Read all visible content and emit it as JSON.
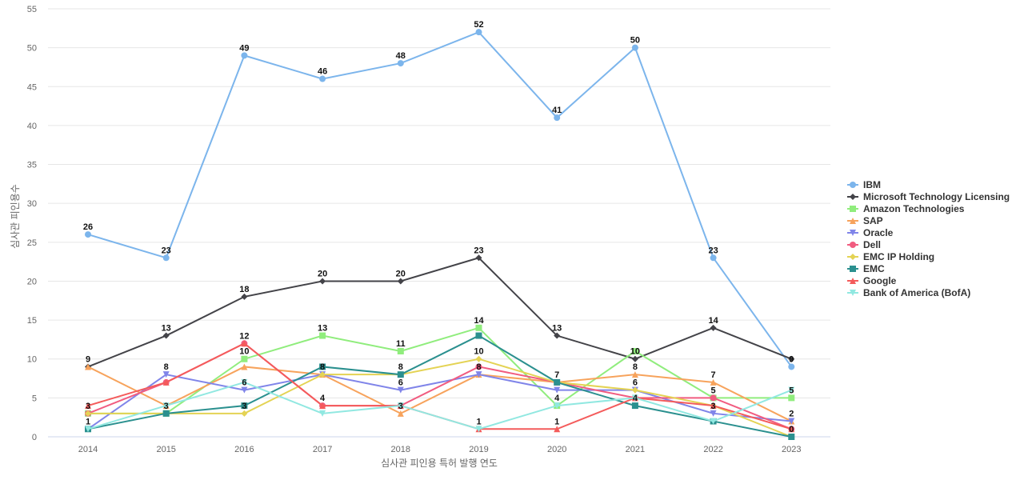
{
  "chart_data": {
    "type": "line",
    "title": "",
    "xlabel": "심사관 피인용 특허 발행 연도",
    "ylabel": "심사관 피인용수",
    "x": [
      "2014",
      "2015",
      "2016",
      "2017",
      "2018",
      "2019",
      "2020",
      "2021",
      "2022",
      "2023"
    ],
    "ylim": [
      0,
      55
    ],
    "yticks": [
      0,
      5,
      10,
      15,
      20,
      25,
      30,
      35,
      40,
      45,
      50,
      55
    ],
    "grid": true,
    "legend_position": "right",
    "series": [
      {
        "name": "IBM",
        "color": "#7cb5ec",
        "marker": "circle",
        "values": [
          26,
          23,
          49,
          46,
          48,
          52,
          41,
          50,
          23,
          9
        ],
        "labels": true
      },
      {
        "name": "Microsoft Technology Licensing",
        "color": "#434348",
        "marker": "diamond",
        "values": [
          9,
          13,
          18,
          20,
          20,
          23,
          13,
          10,
          14,
          10
        ],
        "labels": true
      },
      {
        "name": "Amazon Technologies",
        "color": "#90ed7d",
        "marker": "square",
        "values": [
          3,
          3,
          10,
          13,
          11,
          14,
          4,
          11,
          5,
          5
        ],
        "labels": true
      },
      {
        "name": "SAP",
        "color": "#f7a35c",
        "marker": "triangle",
        "values": [
          9,
          4,
          9,
          8,
          3,
          8,
          7,
          8,
          7,
          2
        ],
        "labels": false
      },
      {
        "name": "Oracle",
        "color": "#8085e9",
        "marker": "triangle-down",
        "values": [
          1,
          8,
          6,
          8,
          6,
          8,
          6,
          6,
          3,
          2
        ],
        "labels": false
      },
      {
        "name": "Dell",
        "color": "#f15c80",
        "marker": "circle",
        "values": [
          3,
          7,
          12,
          4,
          4,
          9,
          7,
          5,
          5,
          1
        ],
        "labels": false
      },
      {
        "name": "EMC IP Holding",
        "color": "#e4d354",
        "marker": "diamond",
        "values": [
          3,
          3,
          3,
          8,
          8,
          10,
          7,
          6,
          4,
          0
        ],
        "labels": false
      },
      {
        "name": "EMC",
        "color": "#2b908f",
        "marker": "square",
        "values": [
          1,
          3,
          4,
          9,
          8,
          13,
          7,
          4,
          2,
          0
        ],
        "labels": false
      },
      {
        "name": "Google",
        "color": "#f45b5b",
        "marker": "triangle",
        "values": [
          4,
          7,
          12,
          4,
          4,
          1,
          1,
          5,
          4,
          1
        ],
        "labels": false
      },
      {
        "name": "Bank of America (BofA)",
        "color": "#91e8e1",
        "marker": "triangle-down",
        "values": [
          1,
          4,
          7,
          3,
          4,
          1,
          4,
          5,
          2,
          6
        ],
        "labels": false
      }
    ],
    "annotations": [
      {
        "x": "2014",
        "values": [
          "26",
          "9",
          "3",
          "1"
        ]
      },
      {
        "x": "2015",
        "values": [
          "23",
          "13",
          "8",
          "3"
        ]
      },
      {
        "x": "2016",
        "values": [
          "49",
          "18",
          "12",
          "10",
          "6",
          "3"
        ]
      },
      {
        "x": "2017",
        "values": [
          "46",
          "20",
          "13",
          "8",
          "4"
        ]
      },
      {
        "x": "2018",
        "values": [
          "48",
          "20",
          "11",
          "8",
          "6",
          "3"
        ]
      },
      {
        "x": "2019",
        "values": [
          "52",
          "23",
          "14",
          "10",
          "8",
          "1"
        ]
      },
      {
        "x": "2020",
        "values": [
          "41",
          "13",
          "7",
          "4",
          "1"
        ]
      },
      {
        "x": "2021",
        "values": [
          "50",
          "10",
          "8",
          "6",
          "4"
        ]
      },
      {
        "x": "2022",
        "values": [
          "23",
          "14",
          "7",
          "5",
          "3"
        ]
      },
      {
        "x": "2023",
        "values": [
          "9",
          "5",
          "2",
          "0"
        ]
      }
    ]
  }
}
